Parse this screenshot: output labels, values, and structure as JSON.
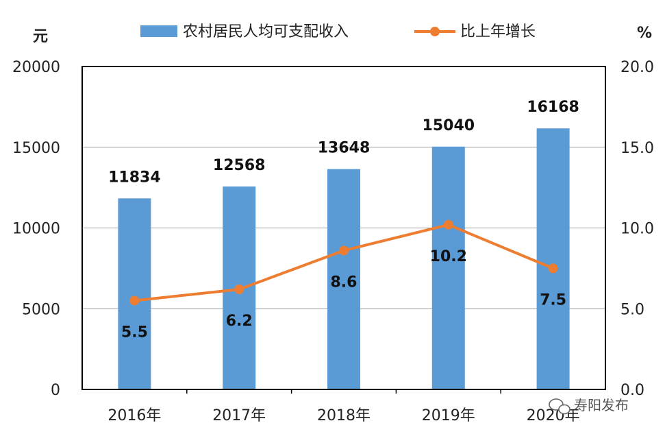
{
  "chart_data": {
    "type": "bar",
    "categories": [
      "2016年",
      "2017年",
      "2018年",
      "2019年",
      "2020年"
    ],
    "series": [
      {
        "name": "农村居民人均可支配收入",
        "type": "bar",
        "axis": "left",
        "values": [
          11834,
          12568,
          13648,
          15040,
          16168
        ]
      },
      {
        "name": "比上年增长",
        "type": "line",
        "axis": "right",
        "values": [
          5.5,
          6.2,
          8.6,
          10.2,
          7.5
        ]
      }
    ],
    "y_left": {
      "unit": "元",
      "ylim": [
        0,
        20000
      ],
      "ticks": [
        "0",
        "5000",
        "10000",
        "15000",
        "20000"
      ]
    },
    "y_right": {
      "unit": "%",
      "ylim": [
        0,
        20
      ],
      "ticks": [
        "0.0",
        "5.0",
        "10.0",
        "15.0",
        "20.0"
      ]
    },
    "bar_labels": [
      "11834",
      "12568",
      "13648",
      "15040",
      "16168"
    ],
    "line_labels": [
      "5.5",
      "6.2",
      "8.6",
      "10.2",
      "7.5"
    ],
    "legend": {
      "position": "top"
    },
    "grid": true,
    "colors": {
      "bar": "#5b9bd5",
      "line": "#ed7d31",
      "grid": "#a0a0a0",
      "frame": "#000000"
    }
  },
  "watermark": {
    "text": "寿阳发布",
    "icon": "wechat-icon"
  }
}
